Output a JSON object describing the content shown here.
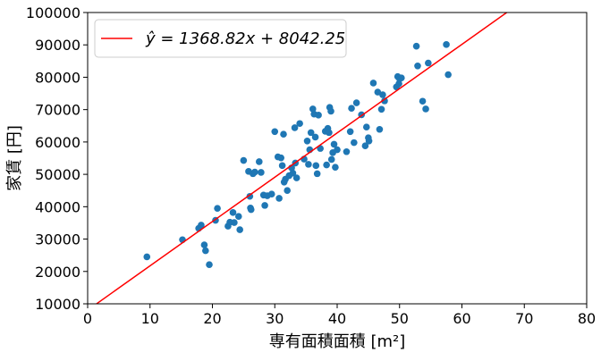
{
  "chart_data": {
    "type": "scatter",
    "title": "",
    "xlabel": "専有面積面積 [m²]",
    "ylabel": "家賃 [円]",
    "xlim": [
      0,
      80
    ],
    "ylim": [
      10000,
      100000
    ],
    "x_ticks": [
      0,
      10,
      20,
      30,
      40,
      50,
      60,
      70,
      80
    ],
    "y_ticks": [
      10000,
      20000,
      30000,
      40000,
      50000,
      60000,
      70000,
      80000,
      90000,
      100000
    ],
    "x_tick_labels": [
      "0",
      "10",
      "20",
      "30",
      "40",
      "50",
      "60",
      "70",
      "80"
    ],
    "y_tick_labels": [
      "10000",
      "20000",
      "30000",
      "40000",
      "50000",
      "60000",
      "70000",
      "80000",
      "90000",
      "100000"
    ],
    "grid": false,
    "legend_position": "top-left",
    "colors": {
      "points": "#1f77b4",
      "fit_line": "#ff0000",
      "axes": "#000000"
    },
    "series": [
      {
        "name": "",
        "type": "scatter",
        "points": [
          [
            9.5,
            24500
          ],
          [
            15.2,
            29800
          ],
          [
            17.8,
            33300
          ],
          [
            18.2,
            34300
          ],
          [
            18.7,
            28200
          ],
          [
            18.9,
            26400
          ],
          [
            19.5,
            22100
          ],
          [
            20.5,
            35800
          ],
          [
            20.8,
            39500
          ],
          [
            22.5,
            34000
          ],
          [
            22.8,
            35200
          ],
          [
            23.3,
            38200
          ],
          [
            23.5,
            35100
          ],
          [
            24.2,
            37000
          ],
          [
            24.4,
            32900
          ],
          [
            25.0,
            54300
          ],
          [
            25.8,
            50900
          ],
          [
            26.0,
            43200
          ],
          [
            26.1,
            39600
          ],
          [
            26.2,
            39100
          ],
          [
            26.5,
            50200
          ],
          [
            26.8,
            50700
          ],
          [
            27.5,
            53900
          ],
          [
            27.8,
            50600
          ],
          [
            28.2,
            43600
          ],
          [
            28.4,
            40400
          ],
          [
            28.8,
            43400
          ],
          [
            29.5,
            43900
          ],
          [
            30.0,
            63200
          ],
          [
            30.5,
            55400
          ],
          [
            30.7,
            42600
          ],
          [
            31.0,
            55100
          ],
          [
            31.2,
            52700
          ],
          [
            31.4,
            62400
          ],
          [
            31.5,
            47600
          ],
          [
            31.7,
            48500
          ],
          [
            32.0,
            45000
          ],
          [
            32.3,
            49600
          ],
          [
            32.7,
            52000
          ],
          [
            32.9,
            50400
          ],
          [
            33.2,
            64400
          ],
          [
            33.3,
            53500
          ],
          [
            33.5,
            48900
          ],
          [
            34.0,
            65700
          ],
          [
            34.7,
            54700
          ],
          [
            35.2,
            60300
          ],
          [
            35.4,
            53100
          ],
          [
            35.6,
            57600
          ],
          [
            35.8,
            62900
          ],
          [
            36.1,
            70200
          ],
          [
            36.3,
            68600
          ],
          [
            36.5,
            61500
          ],
          [
            36.6,
            52700
          ],
          [
            36.8,
            50200
          ],
          [
            37.0,
            68300
          ],
          [
            37.3,
            58000
          ],
          [
            38.1,
            63300
          ],
          [
            38.3,
            52900
          ],
          [
            38.5,
            64200
          ],
          [
            38.7,
            62900
          ],
          [
            38.8,
            70700
          ],
          [
            39.0,
            69500
          ],
          [
            39.1,
            54600
          ],
          [
            39.3,
            56700
          ],
          [
            39.5,
            59300
          ],
          [
            39.7,
            52200
          ],
          [
            40.0,
            57600
          ],
          [
            41.5,
            57000
          ],
          [
            42.1,
            63200
          ],
          [
            42.3,
            70400
          ],
          [
            42.7,
            59800
          ],
          [
            43.1,
            72100
          ],
          [
            43.9,
            68400
          ],
          [
            44.5,
            58800
          ],
          [
            44.7,
            64600
          ],
          [
            45.0,
            61300
          ],
          [
            45.1,
            60300
          ],
          [
            45.8,
            78200
          ],
          [
            46.5,
            75400
          ],
          [
            46.8,
            63900
          ],
          [
            47.1,
            70100
          ],
          [
            47.3,
            74600
          ],
          [
            47.6,
            72700
          ],
          [
            49.5,
            77000
          ],
          [
            49.7,
            80200
          ],
          [
            49.9,
            78000
          ],
          [
            50.0,
            79500
          ],
          [
            50.3,
            79800
          ],
          [
            52.7,
            89600
          ],
          [
            52.9,
            83500
          ],
          [
            53.7,
            72600
          ],
          [
            54.2,
            70200
          ],
          [
            54.6,
            84400
          ],
          [
            57.5,
            90100
          ],
          [
            57.8,
            80800
          ]
        ]
      },
      {
        "name": "ŷ = 1368.82x + 8042.25",
        "type": "line",
        "slope": 1368.82,
        "intercept": 8042.25
      }
    ]
  }
}
